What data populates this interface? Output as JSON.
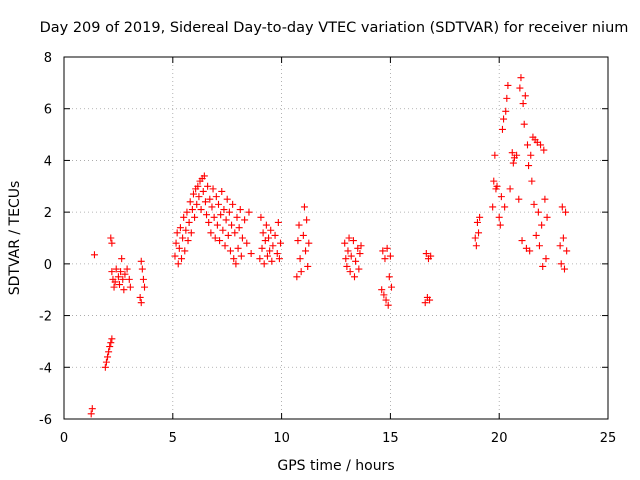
{
  "chart_data": {
    "type": "scatter",
    "title": "Day 209 of 2019, Sidereal Day-to-day VTEC variation (SDTVAR) for receiver nium",
    "xlabel": "GPS time / hours",
    "ylabel": "SDTVAR / TECUs",
    "xlim": [
      0,
      25
    ],
    "ylim": [
      -6,
      8
    ],
    "xticks": [
      0,
      5,
      10,
      15,
      20,
      25
    ],
    "yticks": [
      -6,
      -4,
      -2,
      0,
      2,
      4,
      6,
      8
    ],
    "xtick_labels": [
      "0",
      "5",
      "10",
      "15",
      "20",
      "25"
    ],
    "ytick_labels": [
      "-6",
      "-4",
      "-2",
      "0",
      "2",
      "4",
      "6",
      "8"
    ],
    "grid": true,
    "marker": "+",
    "marker_color": "#ff0000",
    "series": [
      {
        "name": "SDTVAR",
        "points": [
          [
            1.25,
            -5.8
          ],
          [
            1.3,
            -5.6
          ],
          [
            1.4,
            0.35
          ],
          [
            1.9,
            -4.0
          ],
          [
            1.95,
            -3.8
          ],
          [
            2.0,
            -3.6
          ],
          [
            2.05,
            -3.4
          ],
          [
            2.1,
            -3.2
          ],
          [
            2.15,
            -3.05
          ],
          [
            2.2,
            -2.9
          ],
          [
            2.15,
            1.0
          ],
          [
            2.2,
            0.8
          ],
          [
            2.2,
            -0.3
          ],
          [
            2.25,
            -0.6
          ],
          [
            2.3,
            -0.9
          ],
          [
            2.35,
            -0.7
          ],
          [
            2.4,
            -0.2
          ],
          [
            2.5,
            -0.5
          ],
          [
            2.55,
            -0.8
          ],
          [
            2.6,
            -0.3
          ],
          [
            2.65,
            0.2
          ],
          [
            2.7,
            -0.6
          ],
          [
            2.75,
            -1.0
          ],
          [
            2.8,
            -0.4
          ],
          [
            2.9,
            -0.2
          ],
          [
            3.0,
            -0.6
          ],
          [
            3.05,
            -0.9
          ],
          [
            3.5,
            -1.3
          ],
          [
            3.55,
            -1.5
          ],
          [
            3.6,
            -0.2
          ],
          [
            3.65,
            -0.6
          ],
          [
            3.7,
            -0.9
          ],
          [
            3.55,
            0.1
          ],
          [
            5.1,
            0.3
          ],
          [
            5.15,
            0.8
          ],
          [
            5.2,
            1.2
          ],
          [
            5.25,
            0.0
          ],
          [
            5.3,
            0.6
          ],
          [
            5.35,
            1.4
          ],
          [
            5.4,
            0.2
          ],
          [
            5.45,
            1.0
          ],
          [
            5.5,
            1.8
          ],
          [
            5.55,
            0.5
          ],
          [
            5.6,
            1.3
          ],
          [
            5.65,
            2.0
          ],
          [
            5.7,
            0.9
          ],
          [
            5.75,
            1.6
          ],
          [
            5.8,
            2.4
          ],
          [
            5.85,
            1.2
          ],
          [
            5.9,
            2.1
          ],
          [
            5.95,
            2.7
          ],
          [
            6.0,
            1.8
          ],
          [
            6.05,
            2.9
          ],
          [
            6.1,
            2.3
          ],
          [
            6.15,
            3.0
          ],
          [
            6.2,
            2.6
          ],
          [
            6.25,
            3.2
          ],
          [
            6.3,
            2.1
          ],
          [
            6.35,
            3.3
          ],
          [
            6.4,
            2.8
          ],
          [
            6.45,
            3.4
          ],
          [
            6.5,
            2.4
          ],
          [
            6.55,
            1.9
          ],
          [
            6.6,
            3.0
          ],
          [
            6.65,
            1.6
          ],
          [
            6.7,
            2.5
          ],
          [
            6.75,
            1.2
          ],
          [
            6.8,
            2.2
          ],
          [
            6.85,
            2.9
          ],
          [
            6.9,
            1.8
          ],
          [
            6.95,
            1.0
          ],
          [
            7.0,
            2.6
          ],
          [
            7.05,
            1.5
          ],
          [
            7.1,
            2.3
          ],
          [
            7.15,
            0.9
          ],
          [
            7.2,
            1.9
          ],
          [
            7.25,
            2.8
          ],
          [
            7.3,
            1.3
          ],
          [
            7.35,
            2.1
          ],
          [
            7.4,
            0.7
          ],
          [
            7.45,
            1.7
          ],
          [
            7.5,
            2.5
          ],
          [
            7.55,
            1.1
          ],
          [
            7.6,
            2.0
          ],
          [
            7.65,
            0.5
          ],
          [
            7.7,
            1.5
          ],
          [
            7.75,
            2.3
          ],
          [
            7.8,
            0.2
          ],
          [
            7.85,
            1.2
          ],
          [
            7.9,
            0.0
          ],
          [
            7.95,
            1.8
          ],
          [
            8.0,
            0.6
          ],
          [
            8.05,
            1.4
          ],
          [
            8.1,
            2.1
          ],
          [
            8.15,
            0.3
          ],
          [
            8.2,
            1.0
          ],
          [
            8.3,
            1.7
          ],
          [
            8.4,
            0.8
          ],
          [
            8.5,
            2.0
          ],
          [
            8.6,
            0.4
          ],
          [
            9.0,
            0.2
          ],
          [
            9.05,
            1.8
          ],
          [
            9.1,
            0.6
          ],
          [
            9.15,
            1.2
          ],
          [
            9.2,
            0.0
          ],
          [
            9.25,
            0.9
          ],
          [
            9.3,
            1.5
          ],
          [
            9.35,
            0.3
          ],
          [
            9.4,
            1.0
          ],
          [
            9.45,
            0.5
          ],
          [
            9.5,
            1.3
          ],
          [
            9.55,
            0.1
          ],
          [
            9.6,
            0.7
          ],
          [
            9.7,
            1.1
          ],
          [
            9.8,
            0.4
          ],
          [
            9.85,
            1.6
          ],
          [
            9.9,
            0.2
          ],
          [
            9.95,
            0.8
          ],
          [
            10.7,
            -0.5
          ],
          [
            10.75,
            0.9
          ],
          [
            10.8,
            1.5
          ],
          [
            10.85,
            0.2
          ],
          [
            10.9,
            -0.3
          ],
          [
            11.0,
            1.1
          ],
          [
            11.05,
            2.2
          ],
          [
            11.1,
            0.5
          ],
          [
            11.15,
            1.7
          ],
          [
            11.2,
            -0.1
          ],
          [
            11.25,
            0.8
          ],
          [
            12.9,
            0.8
          ],
          [
            12.95,
            0.2
          ],
          [
            13.0,
            -0.1
          ],
          [
            13.05,
            0.5
          ],
          [
            13.1,
            1.0
          ],
          [
            13.15,
            -0.3
          ],
          [
            13.2,
            0.3
          ],
          [
            13.3,
            0.9
          ],
          [
            13.35,
            -0.5
          ],
          [
            13.4,
            0.1
          ],
          [
            13.5,
            0.6
          ],
          [
            13.55,
            -0.2
          ],
          [
            13.6,
            0.4
          ],
          [
            13.65,
            0.7
          ],
          [
            14.6,
            -1.0
          ],
          [
            14.65,
            0.5
          ],
          [
            14.7,
            -1.2
          ],
          [
            14.75,
            0.2
          ],
          [
            14.8,
            -1.4
          ],
          [
            14.85,
            0.6
          ],
          [
            14.9,
            -1.6
          ],
          [
            14.95,
            -0.5
          ],
          [
            15.0,
            0.3
          ],
          [
            15.05,
            -0.9
          ],
          [
            16.6,
            -1.5
          ],
          [
            16.65,
            0.4
          ],
          [
            16.7,
            -1.3
          ],
          [
            16.75,
            0.2
          ],
          [
            16.8,
            -1.4
          ],
          [
            16.85,
            0.3
          ],
          [
            18.9,
            1.0
          ],
          [
            18.95,
            0.7
          ],
          [
            19.0,
            1.6
          ],
          [
            19.05,
            1.2
          ],
          [
            19.1,
            1.8
          ],
          [
            19.7,
            2.2
          ],
          [
            19.75,
            3.2
          ],
          [
            19.8,
            4.2
          ],
          [
            19.85,
            2.9
          ],
          [
            19.9,
            3.0
          ],
          [
            20.0,
            1.8
          ],
          [
            20.05,
            1.5
          ],
          [
            20.1,
            2.6
          ],
          [
            20.15,
            5.2
          ],
          [
            20.2,
            5.6
          ],
          [
            20.25,
            2.2
          ],
          [
            20.3,
            5.9
          ],
          [
            20.35,
            6.4
          ],
          [
            20.4,
            6.9
          ],
          [
            20.5,
            2.9
          ],
          [
            20.6,
            4.3
          ],
          [
            20.65,
            3.9
          ],
          [
            20.7,
            4.1
          ],
          [
            20.8,
            4.2
          ],
          [
            20.9,
            2.5
          ],
          [
            20.95,
            6.8
          ],
          [
            21.0,
            7.2
          ],
          [
            21.05,
            0.9
          ],
          [
            21.1,
            6.2
          ],
          [
            21.15,
            5.4
          ],
          [
            21.2,
            6.5
          ],
          [
            21.25,
            0.6
          ],
          [
            21.3,
            4.6
          ],
          [
            21.35,
            3.8
          ],
          [
            21.4,
            0.5
          ],
          [
            21.45,
            4.2
          ],
          [
            21.5,
            3.2
          ],
          [
            21.55,
            4.9
          ],
          [
            21.6,
            2.3
          ],
          [
            21.65,
            4.8
          ],
          [
            21.7,
            1.1
          ],
          [
            21.75,
            4.7
          ],
          [
            21.8,
            2.0
          ],
          [
            21.85,
            0.7
          ],
          [
            21.9,
            4.6
          ],
          [
            21.95,
            1.5
          ],
          [
            22.0,
            -0.1
          ],
          [
            22.05,
            4.4
          ],
          [
            22.1,
            2.5
          ],
          [
            22.15,
            0.2
          ],
          [
            22.2,
            1.8
          ],
          [
            22.8,
            0.7
          ],
          [
            22.85,
            0.0
          ],
          [
            22.9,
            2.2
          ],
          [
            22.95,
            1.0
          ],
          [
            23.0,
            -0.2
          ],
          [
            23.05,
            2.0
          ],
          [
            23.1,
            0.5
          ]
        ]
      }
    ]
  }
}
